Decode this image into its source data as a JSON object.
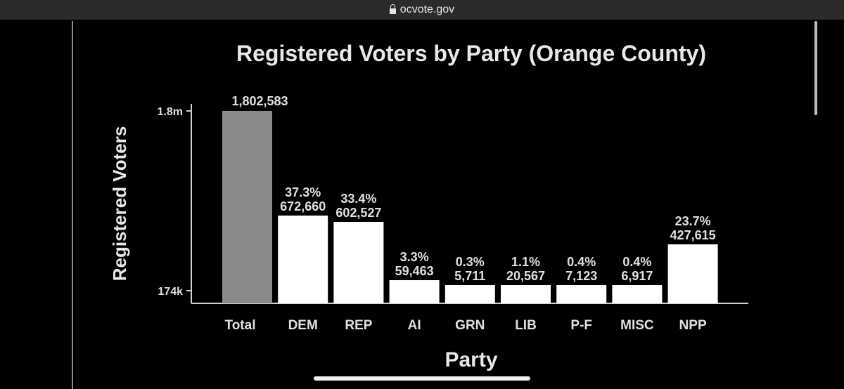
{
  "browser": {
    "url": "ocvote.gov",
    "lock_icon": "lock-icon"
  },
  "chart_data": {
    "type": "bar",
    "title": "Registered Voters by Party (Orange County)",
    "xlabel": "Party",
    "ylabel": "Registered Voters",
    "y_tick_labels": [
      "1.8m",
      "174k"
    ],
    "y_ticks": [
      1800000,
      174000
    ],
    "categories": [
      "Total",
      "DEM",
      "REP",
      "AI",
      "GRN",
      "LIB",
      "P-F",
      "MISC",
      "NPP"
    ],
    "values": [
      1802583,
      672660,
      602527,
      59463,
      5711,
      20567,
      7123,
      6917,
      427615
    ],
    "value_labels": [
      "1,802,583",
      "672,660",
      "602,527",
      "59,463",
      "5,711",
      "20,567",
      "7,123",
      "6,917",
      "427,615"
    ],
    "percent_labels": [
      "",
      "37.3%",
      "33.4%",
      "3.3%",
      "0.3%",
      "1.1%",
      "0.4%",
      "0.4%",
      "23.7%"
    ],
    "colors": {
      "total": "#8a8a8a",
      "party": "#ffffff",
      "background": "#000000",
      "text": "#e0e0e0"
    },
    "grid": false,
    "legend": "none"
  }
}
